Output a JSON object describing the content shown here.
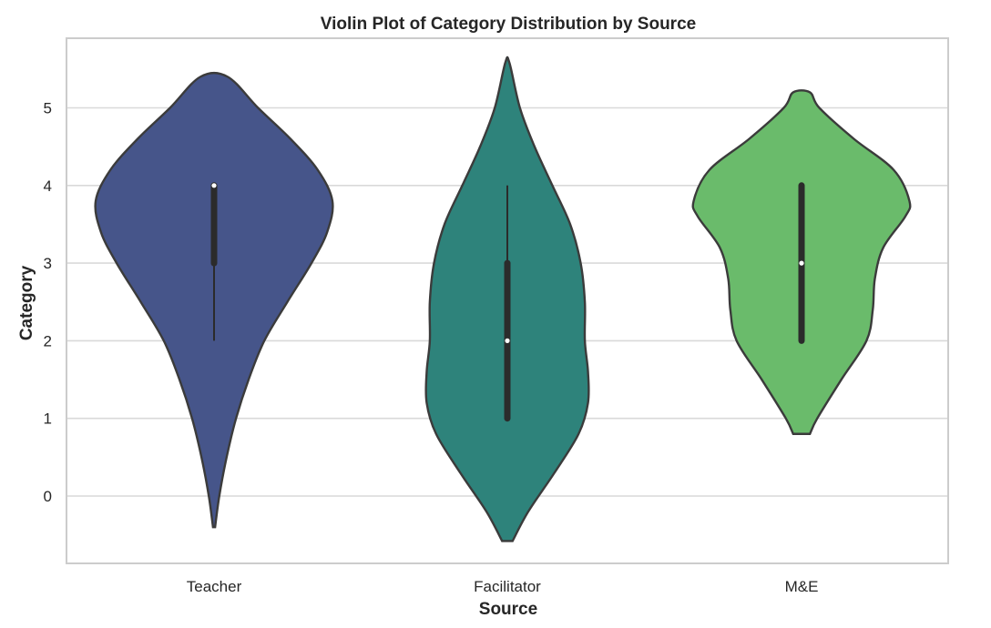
{
  "chart_data": {
    "type": "violin",
    "title": "Violin Plot of Category Distribution by Source",
    "xlabel": "Source",
    "ylabel": "Category",
    "categories": [
      "Teacher",
      "Facilitator",
      "M&E"
    ],
    "ylim": [
      -0.85,
      5.9
    ],
    "yticks": [
      "0",
      "1",
      "2",
      "3",
      "4",
      "5"
    ],
    "grid": true,
    "series": [
      {
        "name": "Teacher",
        "color": "#46558a",
        "range": [
          -0.4,
          5.4
        ],
        "box": {
          "whisker_low": 2,
          "q1": 3,
          "median": 4,
          "q3": 4,
          "whisker_high": 4
        },
        "density": [
          [
            -0.4,
            0.01
          ],
          [
            0.0,
            0.05
          ],
          [
            0.5,
            0.12
          ],
          [
            1.0,
            0.21
          ],
          [
            1.5,
            0.33
          ],
          [
            2.0,
            0.48
          ],
          [
            2.5,
            0.7
          ],
          [
            3.0,
            0.93
          ],
          [
            3.4,
            1.08
          ],
          [
            3.8,
            1.13
          ],
          [
            4.2,
            0.99
          ],
          [
            4.6,
            0.73
          ],
          [
            5.0,
            0.42
          ],
          [
            5.4,
            0.13
          ]
        ]
      },
      {
        "name": "Facilitator",
        "color": "#2e837b",
        "range": [
          -0.58,
          5.58
        ],
        "box": {
          "whisker_low": 1,
          "q1": 1,
          "median": 2,
          "q3": 3,
          "whisker_high": 4
        },
        "density": [
          [
            -0.58,
            0.05
          ],
          [
            -0.2,
            0.2
          ],
          [
            0.3,
            0.45
          ],
          [
            0.8,
            0.68
          ],
          [
            1.2,
            0.77
          ],
          [
            1.6,
            0.77
          ],
          [
            2.0,
            0.74
          ],
          [
            2.5,
            0.74
          ],
          [
            3.0,
            0.7
          ],
          [
            3.5,
            0.6
          ],
          [
            4.0,
            0.43
          ],
          [
            4.5,
            0.26
          ],
          [
            5.0,
            0.12
          ],
          [
            5.58,
            0.02
          ]
        ]
      },
      {
        "name": "M&E",
        "color": "#6abb6b",
        "range": [
          0.8,
          5.2
        ],
        "box": {
          "whisker_low": 2,
          "q1": 2,
          "median": 3,
          "q3": 4,
          "whisker_high": 4
        },
        "density": [
          [
            0.8,
            0.08
          ],
          [
            1.0,
            0.15
          ],
          [
            1.5,
            0.38
          ],
          [
            2.0,
            0.62
          ],
          [
            2.4,
            0.68
          ],
          [
            2.8,
            0.7
          ],
          [
            3.2,
            0.78
          ],
          [
            3.6,
            0.99
          ],
          [
            3.8,
            1.03
          ],
          [
            4.2,
            0.88
          ],
          [
            4.6,
            0.5
          ],
          [
            5.0,
            0.17
          ],
          [
            5.2,
            0.08
          ]
        ]
      }
    ]
  }
}
